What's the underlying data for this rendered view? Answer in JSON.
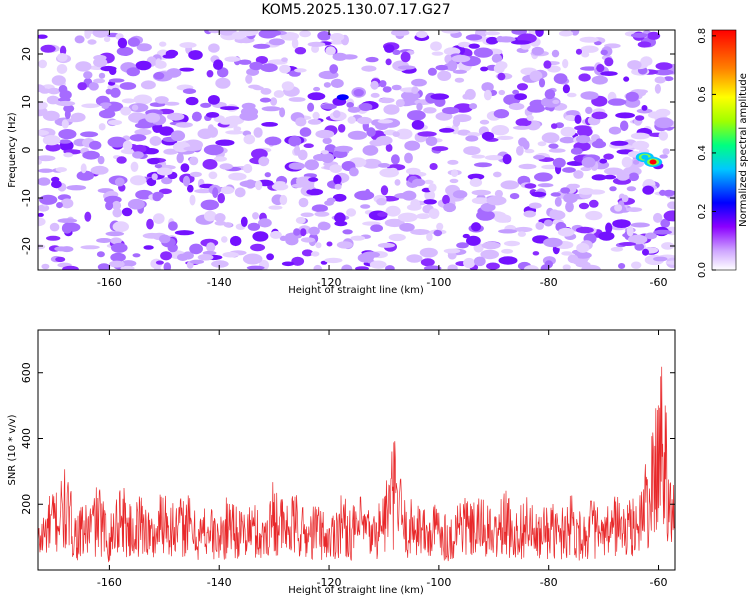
{
  "figure": {
    "title": "KOM5.2025.130.07.17.G27"
  },
  "chart_data": [
    {
      "type": "heatmap",
      "title": "KOM5.2025.130.07.17.G27",
      "xlabel": "Height of straight line (km)",
      "ylabel": "Frequency (Hz)",
      "xlim": [
        -173,
        -57
      ],
      "ylim": [
        -25,
        25
      ],
      "xticks": [
        -160,
        -140,
        -120,
        -100,
        -80,
        -60
      ],
      "yticks": [
        -20,
        -10,
        0,
        10,
        20
      ],
      "colorbar": {
        "label": "Normalized spectral amplitude",
        "range": [
          0,
          0.82
        ],
        "ticks": [
          0.0,
          0.2,
          0.4,
          0.6,
          0.8
        ],
        "tick_labels": [
          "0.0",
          "0.2",
          "0.4",
          "0.6",
          "0.8"
        ],
        "colormap": [
          "#ffffff",
          "#cfa6ff",
          "#8b00ff",
          "#0000ff",
          "#00c8ff",
          "#00ff80",
          "#a0ff00",
          "#ffff00",
          "#ff8000",
          "#ff0000"
        ]
      },
      "background_level": 0.08,
      "features": [
        {
          "x": -117.5,
          "y": 11,
          "value": 0.15,
          "label": "isolated blue blob"
        },
        {
          "x": -62.5,
          "y": -1.5,
          "value": 0.45,
          "label": "signal"
        },
        {
          "x": -61,
          "y": -2.5,
          "value": 0.82,
          "label": "signal peak"
        }
      ],
      "grid": false
    },
    {
      "type": "line",
      "xlabel": "Height of straight line (km)",
      "ylabel": "SNR (10 * v/v)",
      "xlim": [
        -173,
        -57
      ],
      "ylim": [
        0,
        730
      ],
      "xticks": [
        -160,
        -140,
        -120,
        -100,
        -80,
        -60
      ],
      "yticks": [
        200,
        400,
        600
      ],
      "series": [
        {
          "color": "#e8282a",
          "points": [
            [
              -173,
              140
            ],
            [
              -171,
              230
            ],
            [
              -168,
              310
            ],
            [
              -166,
              180
            ],
            [
              -164,
              210
            ],
            [
              -162,
              270
            ],
            [
              -160,
              150
            ],
            [
              -158,
              300
            ],
            [
              -156,
              190
            ],
            [
              -154,
              250
            ],
            [
              -152,
              160
            ],
            [
              -150,
              290
            ],
            [
              -148,
              200
            ],
            [
              -146,
              250
            ],
            [
              -144,
              170
            ],
            [
              -142,
              220
            ],
            [
              -140,
              150
            ],
            [
              -138,
              260
            ],
            [
              -136,
              180
            ],
            [
              -134,
              220
            ],
            [
              -132,
              160
            ],
            [
              -130,
              300
            ],
            [
              -128,
              200
            ],
            [
              -126,
              240
            ],
            [
              -124,
              170
            ],
            [
              -122,
              220
            ],
            [
              -120,
              150
            ],
            [
              -118,
              250
            ],
            [
              -116,
              190
            ],
            [
              -114,
              230
            ],
            [
              -112,
              170
            ],
            [
              -110,
              260
            ],
            [
              -108,
              410
            ],
            [
              -106,
              200
            ],
            [
              -104,
              240
            ],
            [
              -102,
              170
            ],
            [
              -100,
              230
            ],
            [
              -98,
              150
            ],
            [
              -96,
              260
            ],
            [
              -94,
              200
            ],
            [
              -92,
              230
            ],
            [
              -90,
              170
            ],
            [
              -88,
              250
            ],
            [
              -86,
              180
            ],
            [
              -84,
              240
            ],
            [
              -82,
              160
            ],
            [
              -80,
              220
            ],
            [
              -78,
              180
            ],
            [
              -76,
              260
            ],
            [
              -74,
              170
            ],
            [
              -72,
              230
            ],
            [
              -70,
              160
            ],
            [
              -68,
              250
            ],
            [
              -66,
              200
            ],
            [
              -64,
              240
            ],
            [
              -63,
              290
            ],
            [
              -62,
              360
            ],
            [
              -61,
              430
            ],
            [
              -60.5,
              500
            ],
            [
              -60,
              620
            ],
            [
              -59.5,
              730
            ],
            [
              -59,
              540
            ],
            [
              -58.5,
              600
            ],
            [
              -58,
              430
            ],
            [
              -57.5,
              320
            ],
            [
              -57,
              250
            ]
          ]
        }
      ],
      "grid": false
    }
  ]
}
